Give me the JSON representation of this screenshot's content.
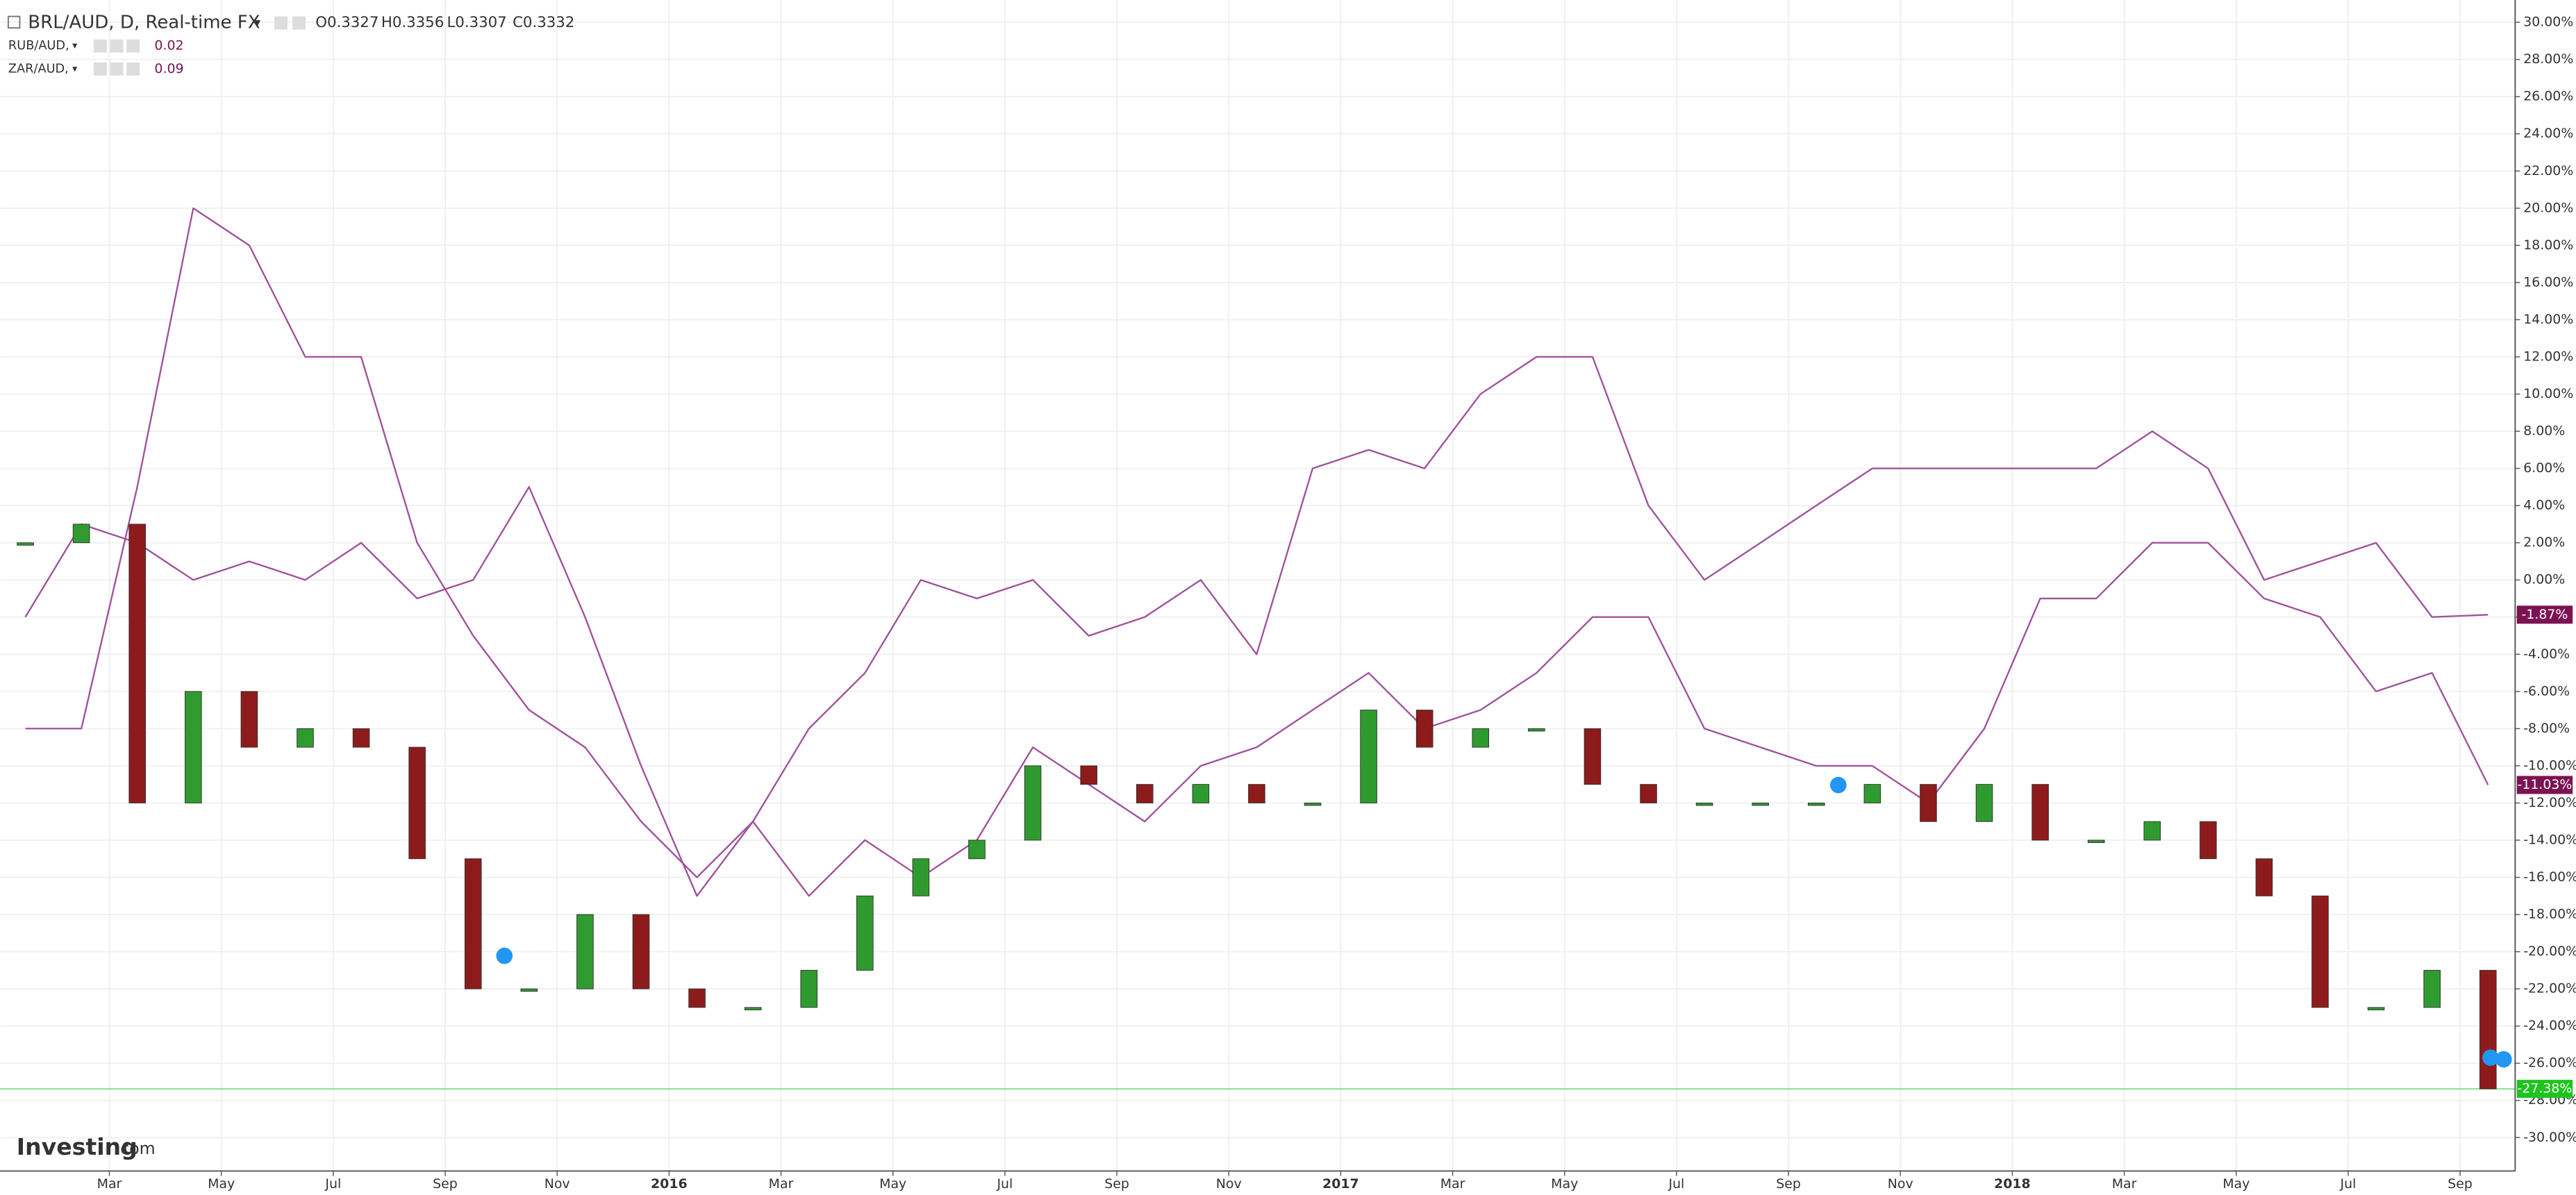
{
  "chart_data": {
    "type": "candlestick",
    "title": "BRL/AUD, D, Real-time FX",
    "ohlc_labels": [
      "O0.3327",
      "H0.3356",
      "L0.3307",
      "C0.3332"
    ],
    "logo": "Investing",
    "logo_suffix": ".com",
    "x": [
      "2015-01",
      "2015-02",
      "2015-03",
      "2015-04",
      "2015-05",
      "2015-06",
      "2015-07",
      "2015-08",
      "2015-09",
      "2015-10",
      "2015-11",
      "2015-12",
      "2016-01",
      "2016-02",
      "2016-03",
      "2016-04",
      "2016-05",
      "2016-06",
      "2016-07",
      "2016-08",
      "2016-09",
      "2016-10",
      "2016-11",
      "2016-12",
      "2017-01",
      "2017-02",
      "2017-03",
      "2017-04",
      "2017-05",
      "2017-06",
      "2017-07",
      "2017-08",
      "2017-09",
      "2017-10",
      "2017-11",
      "2017-12",
      "2018-01",
      "2018-02",
      "2018-03",
      "2018-04",
      "2018-05",
      "2018-06",
      "2018-07",
      "2018-08",
      "2018-09"
    ],
    "values": [
      2,
      3,
      -12,
      -6,
      -9,
      -8,
      -9,
      -15,
      -22,
      -22,
      -18,
      -22,
      -23,
      -23,
      -21,
      -17,
      -15,
      -14,
      -10,
      -11,
      -12,
      -11,
      -12,
      -12,
      -7,
      -9,
      -8,
      -8,
      -11,
      -12,
      -12,
      -12,
      -12,
      -11,
      -13,
      -11,
      -14,
      -14,
      -13,
      -15,
      -17,
      -23,
      -23,
      -21,
      -27.38
    ],
    "color_up": "#2f9b2f",
    "color_down": "#8e1b1b",
    "last_label": "-27.38%",
    "last_color": "#1ec41e",
    "series": [
      {
        "name": "RUB/AUD,",
        "legend_value": "0.02",
        "type": "line",
        "color": "#a0529a",
        "badge_color": "#7b1352",
        "last_label": "-1.87%",
        "values": [
          -8,
          -8,
          5,
          20,
          18,
          12,
          12,
          2,
          -3,
          -7,
          -9,
          -13,
          -16,
          -13,
          -8,
          -5,
          0,
          -1,
          0,
          -3,
          -2,
          0,
          -4,
          6,
          7,
          6,
          10,
          12,
          12,
          4,
          0,
          2,
          4,
          6,
          6,
          6,
          6,
          6,
          8,
          6,
          0,
          1,
          2,
          -2,
          -1.87
        ]
      },
      {
        "name": "ZAR/AUD,",
        "legend_value": "0.09",
        "type": "line",
        "color": "#a0529a",
        "badge_color": "#7b1352",
        "last_label": "-11.03%",
        "values": [
          -2,
          3,
          2,
          0,
          1,
          0,
          2,
          -1,
          0,
          5,
          -2,
          -10,
          -17,
          -13,
          -17,
          -14,
          -16,
          -14,
          -9,
          -11,
          -13,
          -10,
          -9,
          -7,
          -5,
          -8,
          -7,
          -5,
          -2,
          -2,
          -8,
          -9,
          -10,
          -10,
          -12,
          -8,
          -1,
          -1,
          2,
          2,
          -1,
          -2,
          -6,
          -5,
          -11.03
        ]
      }
    ],
    "xticks": [
      {
        "value": "2015-03",
        "label": "Mar"
      },
      {
        "value": "2015-05",
        "label": "May"
      },
      {
        "value": "2015-07",
        "label": "Jul"
      },
      {
        "value": "2015-09",
        "label": "Sep"
      },
      {
        "value": "2015-11",
        "label": "Nov"
      },
      {
        "value": "2016-01",
        "label": "2016"
      },
      {
        "value": "2016-03",
        "label": "Mar"
      },
      {
        "value": "2016-05",
        "label": "May"
      },
      {
        "value": "2016-07",
        "label": "Jul"
      },
      {
        "value": "2016-09",
        "label": "Sep"
      },
      {
        "value": "2016-11",
        "label": "Nov"
      },
      {
        "value": "2017-01",
        "label": "2017"
      },
      {
        "value": "2017-03",
        "label": "Mar"
      },
      {
        "value": "2017-05",
        "label": "May"
      },
      {
        "value": "2017-07",
        "label": "Jul"
      },
      {
        "value": "2017-09",
        "label": "Sep"
      },
      {
        "value": "2017-11",
        "label": "Nov"
      },
      {
        "value": "2018-01",
        "label": "2018"
      },
      {
        "value": "2018-03",
        "label": "Mar"
      },
      {
        "value": "2018-05",
        "label": "May"
      },
      {
        "value": "2018-07",
        "label": "Jul"
      },
      {
        "value": "2018-09",
        "label": "Sep"
      }
    ],
    "ylim": [
      -31.8,
      31.2
    ],
    "yticks": [
      {
        "value": 30,
        "label": "30.00%"
      },
      {
        "value": 28,
        "label": "28.00%"
      },
      {
        "value": 26,
        "label": "26.00%"
      },
      {
        "value": 24,
        "label": "24.00%"
      },
      {
        "value": 22,
        "label": "22.00%"
      },
      {
        "value": 20,
        "label": "20.00%"
      },
      {
        "value": 18,
        "label": "18.00%"
      },
      {
        "value": 16,
        "label": "16.00%"
      },
      {
        "value": 14,
        "label": "14.00%"
      },
      {
        "value": 12,
        "label": "12.00%"
      },
      {
        "value": 10,
        "label": "10.00%"
      },
      {
        "value": 8,
        "label": "8.00%"
      },
      {
        "value": 6,
        "label": "6.00%"
      },
      {
        "value": 4,
        "label": "4.00%"
      },
      {
        "value": 2,
        "label": "2.00%"
      },
      {
        "value": 0,
        "label": "0.00%"
      },
      {
        "value": -2,
        "label": "-2.00%"
      },
      {
        "value": -4,
        "label": "-4.00%"
      },
      {
        "value": -6,
        "label": "-6.00%"
      },
      {
        "value": -8,
        "label": "-8.00%"
      },
      {
        "value": -10,
        "label": "-10.00%"
      },
      {
        "value": -12,
        "label": "-12.00%"
      },
      {
        "value": -14,
        "label": "-14.00%"
      },
      {
        "value": -16,
        "label": "-16.00%"
      },
      {
        "value": -18,
        "label": "-18.00%"
      },
      {
        "value": -20,
        "label": "-20.00%"
      },
      {
        "value": -22,
        "label": "-22.00%"
      },
      {
        "value": -24,
        "label": "-24.00%"
      },
      {
        "value": -26,
        "label": "-26.00%"
      },
      {
        "value": -28,
        "label": "-28.00%"
      },
      {
        "value": -30,
        "label": "-30.00%"
      }
    ],
    "grid": true
  }
}
